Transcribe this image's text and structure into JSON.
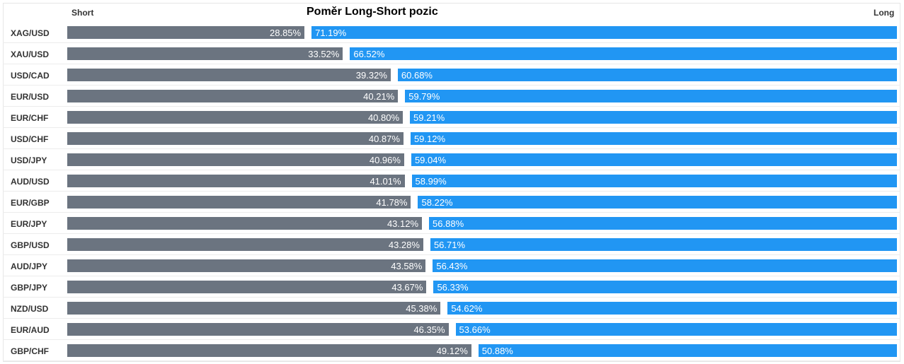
{
  "chart_data": {
    "type": "bar",
    "title": "Poměr Long-Short pozic",
    "short_label": "Short",
    "long_label": "Long",
    "colors": {
      "short": "#6b7480",
      "long": "#2196f3"
    },
    "categories": [
      "XAG/USD",
      "XAU/USD",
      "USD/CAD",
      "EUR/USD",
      "EUR/CHF",
      "USD/CHF",
      "USD/JPY",
      "AUD/USD",
      "EUR/GBP",
      "EUR/JPY",
      "GBP/USD",
      "AUD/JPY",
      "GBP/JPY",
      "NZD/USD",
      "EUR/AUD",
      "GBP/CHF"
    ],
    "series": [
      {
        "name": "Short",
        "values": [
          28.85,
          33.52,
          39.32,
          40.21,
          40.8,
          40.87,
          40.96,
          41.01,
          41.78,
          43.12,
          43.28,
          43.58,
          43.67,
          45.38,
          46.35,
          49.12
        ],
        "labels": [
          "28.85%",
          "33.52%",
          "39.32%",
          "40.21%",
          "40.80%",
          "40.87%",
          "40.96%",
          "41.01%",
          "41.78%",
          "43.12%",
          "43.28%",
          "43.58%",
          "43.67%",
          "45.38%",
          "46.35%",
          "49.12%"
        ]
      },
      {
        "name": "Long",
        "values": [
          71.19,
          66.52,
          60.68,
          59.79,
          59.21,
          59.12,
          59.04,
          58.99,
          58.22,
          56.88,
          56.71,
          56.43,
          56.33,
          54.62,
          53.66,
          50.88
        ],
        "labels": [
          "71.19%",
          "66.52%",
          "60.68%",
          "59.79%",
          "59.21%",
          "59.12%",
          "59.04%",
          "58.99%",
          "58.22%",
          "56.88%",
          "56.71%",
          "56.43%",
          "56.33%",
          "54.62%",
          "53.66%",
          "50.88%"
        ]
      }
    ]
  }
}
